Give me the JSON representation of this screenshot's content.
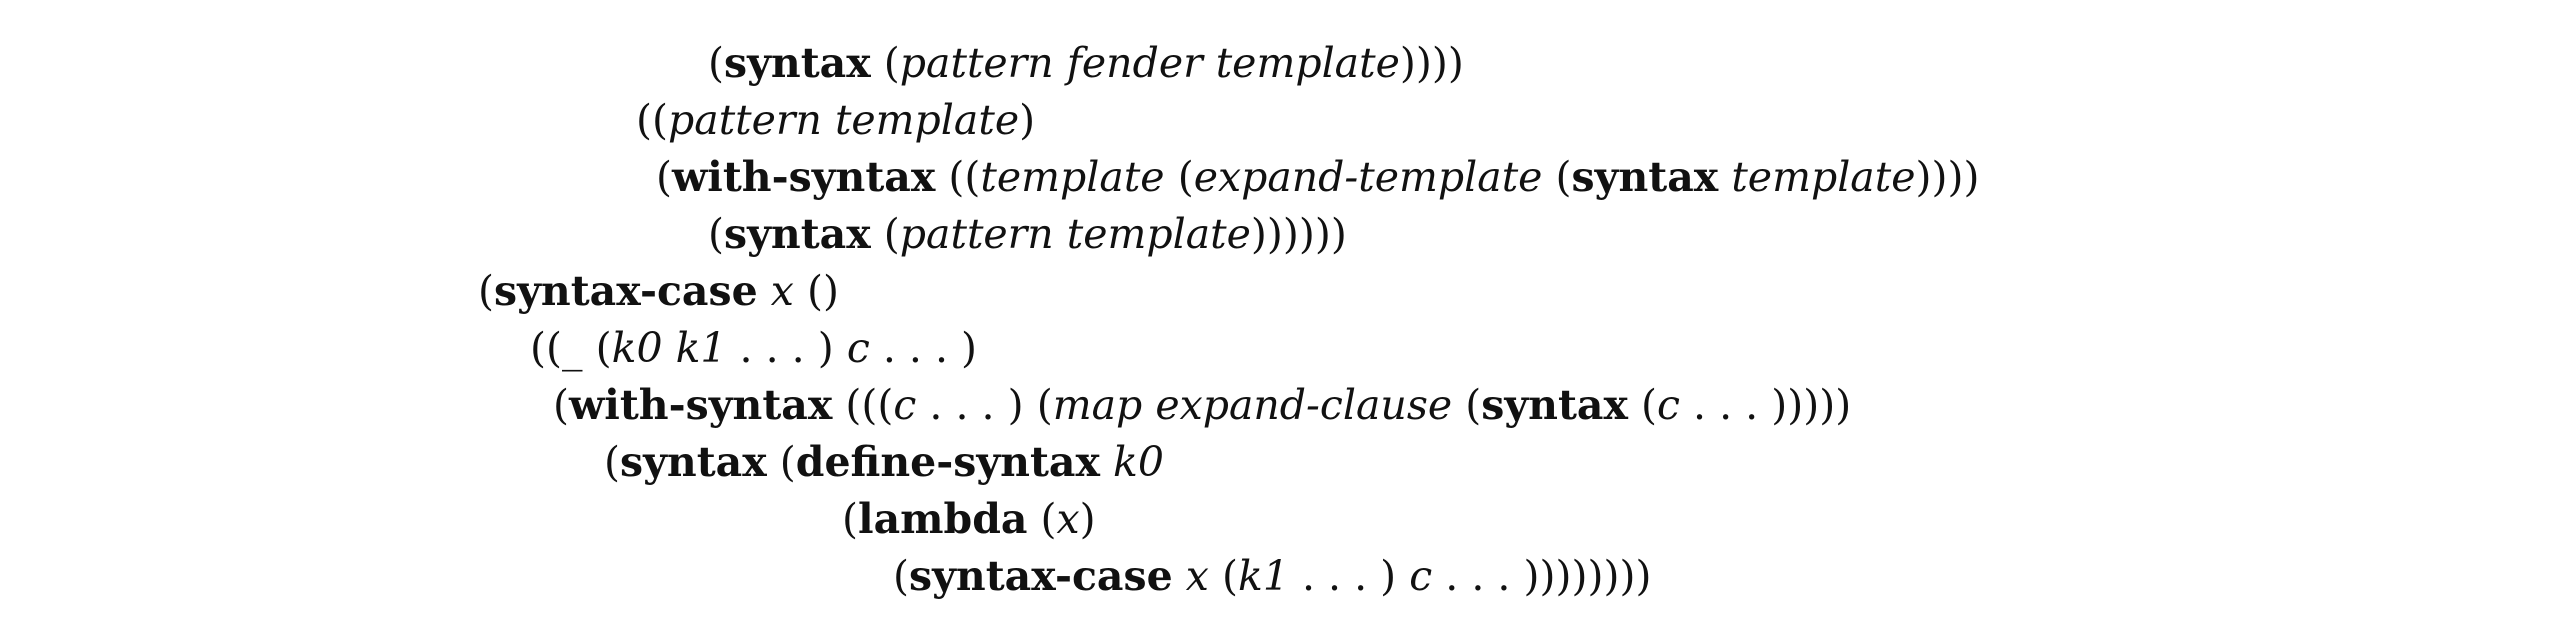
{
  "code_listing": {
    "lines": [
      {
        "segments": [
          {
            "s": "normal",
            "t": "("
          },
          {
            "s": "bold",
            "t": "syntax"
          },
          {
            "s": "space"
          },
          {
            "s": "normal",
            "t": "("
          },
          {
            "s": "italic",
            "t": "pattern fender template"
          },
          {
            "s": "normal",
            "t": "))))"
          }
        ]
      },
      {
        "segments": [
          {
            "s": "normal",
            "t": "(("
          },
          {
            "s": "italic",
            "t": "pattern template"
          },
          {
            "s": "normal",
            "t": ")"
          }
        ]
      },
      {
        "segments": [
          {
            "s": "normal",
            "t": "("
          },
          {
            "s": "bold",
            "t": "with-syntax"
          },
          {
            "s": "space"
          },
          {
            "s": "normal",
            "t": "(("
          },
          {
            "s": "italic",
            "t": "template"
          },
          {
            "s": "space"
          },
          {
            "s": "normal",
            "t": "("
          },
          {
            "s": "italic",
            "t": "expand-template"
          },
          {
            "s": "space"
          },
          {
            "s": "normal",
            "t": "("
          },
          {
            "s": "bold",
            "t": "syntax"
          },
          {
            "s": "space"
          },
          {
            "s": "italic",
            "t": "template"
          },
          {
            "s": "normal",
            "t": "))))"
          }
        ]
      },
      {
        "segments": [
          {
            "s": "normal",
            "t": "("
          },
          {
            "s": "bold",
            "t": "syntax"
          },
          {
            "s": "space"
          },
          {
            "s": "normal",
            "t": "("
          },
          {
            "s": "italic",
            "t": "pattern template"
          },
          {
            "s": "normal",
            "t": "))))))"
          }
        ]
      },
      {
        "segments": [
          {
            "s": "normal",
            "t": "("
          },
          {
            "s": "bold",
            "t": "syntax-case"
          },
          {
            "s": "space"
          },
          {
            "s": "italic",
            "t": "x"
          },
          {
            "s": "space"
          },
          {
            "s": "normal",
            "t": "()"
          }
        ]
      },
      {
        "segments": [
          {
            "s": "normal",
            "t": "(("
          },
          {
            "s": "italic",
            "t": "_"
          },
          {
            "s": "space"
          },
          {
            "s": "normal",
            "t": "("
          },
          {
            "s": "italic",
            "t": "k0 k1"
          },
          {
            "s": "normal",
            "t": " . . . )"
          },
          {
            "s": "space"
          },
          {
            "s": "italic",
            "t": "c"
          },
          {
            "s": "normal",
            "t": " . . . )"
          }
        ]
      },
      {
        "segments": [
          {
            "s": "normal",
            "t": "("
          },
          {
            "s": "bold",
            "t": "with-syntax"
          },
          {
            "s": "space"
          },
          {
            "s": "normal",
            "t": "((("
          },
          {
            "s": "italic",
            "t": "c"
          },
          {
            "s": "normal",
            "t": " . . . )"
          },
          {
            "s": "space"
          },
          {
            "s": "normal",
            "t": "("
          },
          {
            "s": "italic",
            "t": "map expand-clause"
          },
          {
            "s": "space"
          },
          {
            "s": "normal",
            "t": "("
          },
          {
            "s": "bold",
            "t": "syntax"
          },
          {
            "s": "space"
          },
          {
            "s": "normal",
            "t": "("
          },
          {
            "s": "italic",
            "t": "c"
          },
          {
            "s": "normal",
            "t": " . . . )))))"
          }
        ]
      },
      {
        "segments": [
          {
            "s": "normal",
            "t": "("
          },
          {
            "s": "bold",
            "t": "syntax"
          },
          {
            "s": "space"
          },
          {
            "s": "normal",
            "t": "("
          },
          {
            "s": "bold",
            "t": "define-syntax"
          },
          {
            "s": "space"
          },
          {
            "s": "italic",
            "t": "k0"
          }
        ]
      },
      {
        "segments": [
          {
            "s": "normal",
            "t": "("
          },
          {
            "s": "bold",
            "t": "lambda"
          },
          {
            "s": "space"
          },
          {
            "s": "normal",
            "t": "("
          },
          {
            "s": "italic",
            "t": "x"
          },
          {
            "s": "normal",
            "t": ")"
          }
        ]
      },
      {
        "segments": [
          {
            "s": "normal",
            "t": "("
          },
          {
            "s": "bold",
            "t": "syntax-case"
          },
          {
            "s": "space"
          },
          {
            "s": "italic",
            "t": "x"
          },
          {
            "s": "space"
          },
          {
            "s": "normal",
            "t": "("
          },
          {
            "s": "italic",
            "t": "k1"
          },
          {
            "s": "normal",
            "t": " . . . )"
          },
          {
            "s": "space"
          },
          {
            "s": "italic",
            "t": "c"
          },
          {
            "s": "normal",
            "t": " . . . ))))))))"
          }
        ]
      }
    ]
  }
}
